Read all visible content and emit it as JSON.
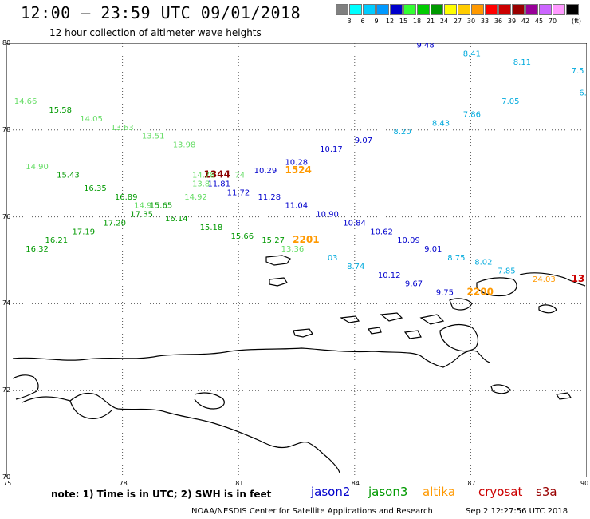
{
  "header": {
    "title": "12:00 – 23:59 UTC 09/01/2018",
    "subtitle": "12 hour collection of altimeter wave heights"
  },
  "colorbar": {
    "unit": "(ft)",
    "entries": [
      {
        "label": "",
        "color": "#808080"
      },
      {
        "label": "3",
        "color": "#00ffff"
      },
      {
        "label": "6",
        "color": "#00ccff"
      },
      {
        "label": "9",
        "color": "#0099ff"
      },
      {
        "label": "12",
        "color": "#0000cc"
      },
      {
        "label": "15",
        "color": "#33ff33"
      },
      {
        "label": "18",
        "color": "#00cc00"
      },
      {
        "label": "21",
        "color": "#009900"
      },
      {
        "label": "24",
        "color": "#ffff00"
      },
      {
        "label": "27",
        "color": "#ffcc00"
      },
      {
        "label": "30",
        "color": "#ff9900"
      },
      {
        "label": "33",
        "color": "#ff0000"
      },
      {
        "label": "36",
        "color": "#cc0000"
      },
      {
        "label": "39",
        "color": "#990000"
      },
      {
        "label": "42",
        "color": "#990099"
      },
      {
        "label": "45",
        "color": "#cc66ff"
      },
      {
        "label": "70",
        "color": "#ff99ff"
      },
      {
        "label": "",
        "color": "#000000"
      }
    ]
  },
  "map": {
    "lat_labels": [
      "80",
      "78",
      "76",
      "74",
      "72",
      "70"
    ],
    "lon_labels": [
      "75",
      "78",
      "81",
      "84",
      "87",
      "90"
    ],
    "lat_min": 70,
    "lat_max": 80,
    "lon_min": 75,
    "lon_max": 90,
    "colors": {
      "green_light": "#66dd66",
      "green": "#009900",
      "blue": "#0000cc",
      "cyan": "#00aadd",
      "orange": "#ff9900",
      "darkred": "#8b0000",
      "red": "#cc0000"
    },
    "annotations": [
      {
        "text": "9.48",
        "lon": 85.6,
        "lat": 79.9,
        "c": "blue"
      },
      {
        "text": "8.41",
        "lon": 86.8,
        "lat": 79.7,
        "c": "cyan"
      },
      {
        "text": "8.11",
        "lon": 88.1,
        "lat": 79.5,
        "c": "cyan"
      },
      {
        "text": "7.5",
        "lon": 89.6,
        "lat": 79.3,
        "c": "cyan"
      },
      {
        "text": "7.05",
        "lon": 87.8,
        "lat": 78.6,
        "c": "cyan"
      },
      {
        "text": "6.",
        "lon": 89.8,
        "lat": 78.8,
        "c": "cyan"
      },
      {
        "text": "7.86",
        "lon": 86.8,
        "lat": 78.3,
        "c": "cyan"
      },
      {
        "text": "8.43",
        "lon": 86.0,
        "lat": 78.1,
        "c": "cyan"
      },
      {
        "text": "8.20",
        "lon": 85.0,
        "lat": 77.9,
        "c": "cyan"
      },
      {
        "text": "9.07",
        "lon": 84.0,
        "lat": 77.7,
        "c": "blue"
      },
      {
        "text": "10.17",
        "lon": 83.1,
        "lat": 77.5,
        "c": "blue"
      },
      {
        "text": "10.28",
        "lon": 82.2,
        "lat": 77.2,
        "c": "blue"
      },
      {
        "text": "1524",
        "lon": 82.2,
        "lat": 77.0,
        "c": "orange",
        "big": true
      },
      {
        "text": "10.29",
        "lon": 81.4,
        "lat": 77.0,
        "c": "blue"
      },
      {
        "text": "1344",
        "lon": 80.1,
        "lat": 76.9,
        "c": "darkred",
        "big": true
      },
      {
        "text": "74",
        "lon": 80.9,
        "lat": 76.9,
        "c": "green_light"
      },
      {
        "text": "11.81",
        "lon": 80.2,
        "lat": 76.7,
        "c": "blue"
      },
      {
        "text": "13.8",
        "lon": 79.8,
        "lat": 76.7,
        "c": "green_light"
      },
      {
        "text": "11.72",
        "lon": 80.7,
        "lat": 76.5,
        "c": "blue"
      },
      {
        "text": "11.28",
        "lon": 81.5,
        "lat": 76.4,
        "c": "blue"
      },
      {
        "text": "11.04",
        "lon": 82.2,
        "lat": 76.2,
        "c": "blue"
      },
      {
        "text": "10.90",
        "lon": 83.0,
        "lat": 76.0,
        "c": "blue"
      },
      {
        "text": "10.84",
        "lon": 83.7,
        "lat": 75.8,
        "c": "blue"
      },
      {
        "text": "10.62",
        "lon": 84.4,
        "lat": 75.6,
        "c": "blue"
      },
      {
        "text": "10.09",
        "lon": 85.1,
        "lat": 75.4,
        "c": "blue"
      },
      {
        "text": "9.01",
        "lon": 85.8,
        "lat": 75.2,
        "c": "blue"
      },
      {
        "text": "8.75",
        "lon": 86.4,
        "lat": 75.0,
        "c": "cyan"
      },
      {
        "text": "8.02",
        "lon": 87.1,
        "lat": 74.9,
        "c": "cyan"
      },
      {
        "text": "7.85",
        "lon": 87.7,
        "lat": 74.7,
        "c": "cyan"
      },
      {
        "text": "24.03",
        "lon": 88.6,
        "lat": 74.5,
        "c": "orange"
      },
      {
        "text": "13",
        "lon": 89.6,
        "lat": 74.5,
        "c": "red",
        "big": true
      },
      {
        "text": "14.66",
        "lon": 75.2,
        "lat": 78.6,
        "c": "green_light"
      },
      {
        "text": "15.58",
        "lon": 76.1,
        "lat": 78.4,
        "c": "green"
      },
      {
        "text": "14.05",
        "lon": 76.9,
        "lat": 78.2,
        "c": "green_light"
      },
      {
        "text": "13.63",
        "lon": 77.7,
        "lat": 78.0,
        "c": "green_light"
      },
      {
        "text": "13.51",
        "lon": 78.5,
        "lat": 77.8,
        "c": "green_light"
      },
      {
        "text": "13.98",
        "lon": 79.3,
        "lat": 77.6,
        "c": "green_light"
      },
      {
        "text": "14.78",
        "lon": 79.8,
        "lat": 76.9,
        "c": "green_light"
      },
      {
        "text": "14.90",
        "lon": 75.5,
        "lat": 77.1,
        "c": "green_light"
      },
      {
        "text": "15.43",
        "lon": 76.3,
        "lat": 76.9,
        "c": "green"
      },
      {
        "text": "16.35",
        "lon": 77.0,
        "lat": 76.6,
        "c": "green"
      },
      {
        "text": "16.89",
        "lon": 77.8,
        "lat": 76.4,
        "c": "green"
      },
      {
        "text": "14.9",
        "lon": 78.3,
        "lat": 76.2,
        "c": "green_light"
      },
      {
        "text": "15.65",
        "lon": 78.7,
        "lat": 76.2,
        "c": "green"
      },
      {
        "text": "14.92",
        "lon": 79.6,
        "lat": 76.4,
        "c": "green_light"
      },
      {
        "text": "17.35",
        "lon": 78.2,
        "lat": 76.0,
        "c": "green"
      },
      {
        "text": "16.14",
        "lon": 79.1,
        "lat": 75.9,
        "c": "green"
      },
      {
        "text": "17.20",
        "lon": 77.5,
        "lat": 75.8,
        "c": "green"
      },
      {
        "text": "15.18",
        "lon": 80.0,
        "lat": 75.7,
        "c": "green"
      },
      {
        "text": "17.19",
        "lon": 76.7,
        "lat": 75.6,
        "c": "green"
      },
      {
        "text": "15.66",
        "lon": 80.8,
        "lat": 75.5,
        "c": "green"
      },
      {
        "text": "16.21",
        "lon": 76.0,
        "lat": 75.4,
        "c": "green"
      },
      {
        "text": "15.27",
        "lon": 81.6,
        "lat": 75.4,
        "c": "green"
      },
      {
        "text": "2201",
        "lon": 82.4,
        "lat": 75.4,
        "c": "orange",
        "big": true
      },
      {
        "text": "16.32",
        "lon": 75.5,
        "lat": 75.2,
        "c": "green"
      },
      {
        "text": "13.36",
        "lon": 82.1,
        "lat": 75.2,
        "c": "green_light"
      },
      {
        "text": "03",
        "lon": 83.3,
        "lat": 75.0,
        "c": "cyan"
      },
      {
        "text": "8.74",
        "lon": 83.8,
        "lat": 74.8,
        "c": "cyan"
      },
      {
        "text": "10.12",
        "lon": 84.6,
        "lat": 74.6,
        "c": "blue"
      },
      {
        "text": "9.67",
        "lon": 85.3,
        "lat": 74.4,
        "c": "blue"
      },
      {
        "text": "9.75",
        "lon": 86.1,
        "lat": 74.2,
        "c": "blue"
      },
      {
        "text": "2200",
        "lon": 86.9,
        "lat": 74.2,
        "c": "orange",
        "big": true
      }
    ]
  },
  "footer": {
    "note": "note:  1) Time is in UTC;  2) SWH is in feet",
    "legend": [
      {
        "label": "jason2",
        "color": "#0000cc"
      },
      {
        "label": "jason3",
        "color": "#009900"
      },
      {
        "label": "altika",
        "color": "#ff9900"
      },
      {
        "label": "cryosat",
        "color": "#cc0000"
      },
      {
        "label": "s3a",
        "color": "#990000"
      }
    ],
    "credit": "NOAA/NESDIS Center for Satellite Applications and Research",
    "timestamp": "Sep  2 12:27:56 UTC 2018"
  }
}
